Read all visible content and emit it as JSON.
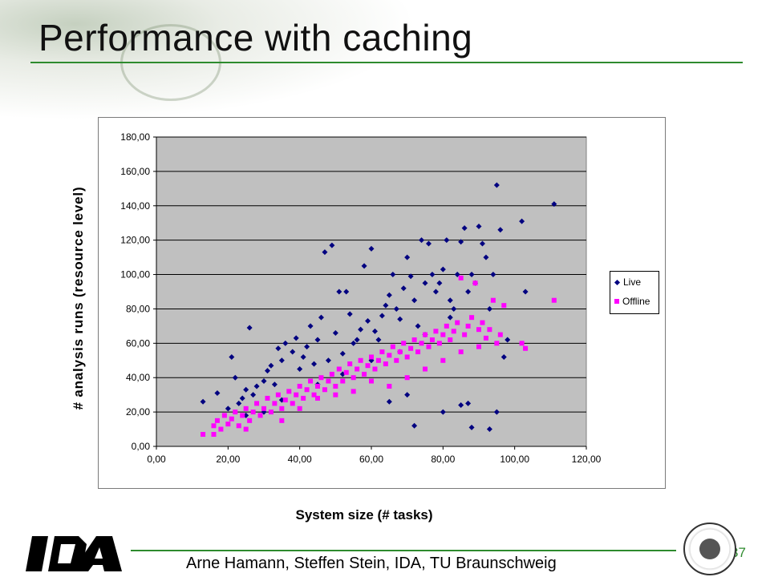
{
  "slide": {
    "title": "Performance with caching",
    "footer": "Arne Hamann, Steffen Stein, IDA, TU Braunschweig",
    "page_number": "37",
    "logo": "IDA",
    "seal_icon": "university-seal-icon"
  },
  "colors": {
    "accent_line": "#2e8b2e",
    "plot_bg": "#c0c0c0",
    "live": "#000080",
    "offline": "#ff00ff"
  },
  "chart_data": {
    "type": "scatter",
    "xlabel": "System size (# tasks)",
    "ylabel": "# analysis runs (resource level)",
    "xlim": [
      0,
      120
    ],
    "ylim": [
      0,
      180
    ],
    "x_ticks": [
      "0,00",
      "20,00",
      "40,00",
      "60,00",
      "80,00",
      "100,00",
      "120,00"
    ],
    "y_ticks": [
      "0,00",
      "20,00",
      "40,00",
      "60,00",
      "80,00",
      "100,00",
      "120,00",
      "140,00",
      "160,00",
      "180,00"
    ],
    "grid": "horizontal",
    "legend_placement": "right",
    "series": [
      {
        "name": "Live",
        "marker": "diamond",
        "points": [
          [
            13,
            26
          ],
          [
            17,
            31
          ],
          [
            20,
            22
          ],
          [
            21,
            52
          ],
          [
            22,
            40
          ],
          [
            24,
            28
          ],
          [
            25,
            33
          ],
          [
            26,
            69
          ],
          [
            27,
            30
          ],
          [
            28,
            35
          ],
          [
            30,
            38
          ],
          [
            31,
            44
          ],
          [
            32,
            47
          ],
          [
            33,
            36
          ],
          [
            34,
            57
          ],
          [
            35,
            50
          ],
          [
            36,
            60
          ],
          [
            38,
            55
          ],
          [
            39,
            63
          ],
          [
            40,
            45
          ],
          [
            41,
            52
          ],
          [
            42,
            58
          ],
          [
            43,
            70
          ],
          [
            44,
            48
          ],
          [
            45,
            62
          ],
          [
            46,
            75
          ],
          [
            47,
            113
          ],
          [
            48,
            50
          ],
          [
            49,
            117
          ],
          [
            50,
            66
          ],
          [
            51,
            90
          ],
          [
            52,
            54
          ],
          [
            53,
            90
          ],
          [
            54,
            77
          ],
          [
            55,
            60
          ],
          [
            56,
            62
          ],
          [
            57,
            68
          ],
          [
            58,
            105
          ],
          [
            59,
            73
          ],
          [
            60,
            115
          ],
          [
            61,
            67
          ],
          [
            62,
            62
          ],
          [
            63,
            76
          ],
          [
            64,
            82
          ],
          [
            65,
            88
          ],
          [
            66,
            100
          ],
          [
            67,
            80
          ],
          [
            68,
            74
          ],
          [
            69,
            92
          ],
          [
            70,
            110
          ],
          [
            71,
            99
          ],
          [
            72,
            85
          ],
          [
            73,
            70
          ],
          [
            74,
            120
          ],
          [
            75,
            95
          ],
          [
            76,
            118
          ],
          [
            77,
            100
          ],
          [
            78,
            90
          ],
          [
            79,
            95
          ],
          [
            80,
            103
          ],
          [
            81,
            120
          ],
          [
            82,
            85
          ],
          [
            83,
            80
          ],
          [
            84,
            100
          ],
          [
            85,
            119
          ],
          [
            86,
            127
          ],
          [
            87,
            90
          ],
          [
            88,
            100
          ],
          [
            89,
            95
          ],
          [
            90,
            128
          ],
          [
            91,
            118
          ],
          [
            92,
            110
          ],
          [
            93,
            80
          ],
          [
            94,
            100
          ],
          [
            95,
            152
          ],
          [
            96,
            126
          ],
          [
            97,
            52
          ],
          [
            98,
            62
          ],
          [
            102,
            131
          ],
          [
            103,
            90
          ],
          [
            111,
            141
          ],
          [
            72,
            12
          ],
          [
            80,
            20
          ],
          [
            85,
            24
          ],
          [
            88,
            11
          ],
          [
            93,
            10
          ],
          [
            95,
            20
          ],
          [
            87,
            25
          ],
          [
            70,
            30
          ],
          [
            65,
            26
          ],
          [
            45,
            36
          ],
          [
            35,
            27
          ],
          [
            30,
            20
          ],
          [
            25,
            18
          ],
          [
            23,
            25
          ],
          [
            52,
            42
          ],
          [
            60,
            50
          ],
          [
            68,
            55
          ],
          [
            75,
            65
          ],
          [
            82,
            75
          ]
        ]
      },
      {
        "name": "Offline",
        "marker": "square",
        "points": [
          [
            13,
            7
          ],
          [
            16,
            7
          ],
          [
            16,
            12
          ],
          [
            17,
            15
          ],
          [
            18,
            10
          ],
          [
            19,
            18
          ],
          [
            20,
            13
          ],
          [
            21,
            16
          ],
          [
            22,
            20
          ],
          [
            23,
            12
          ],
          [
            24,
            18
          ],
          [
            25,
            22
          ],
          [
            26,
            15
          ],
          [
            27,
            20
          ],
          [
            28,
            25
          ],
          [
            29,
            18
          ],
          [
            30,
            22
          ],
          [
            31,
            28
          ],
          [
            32,
            20
          ],
          [
            33,
            25
          ],
          [
            34,
            30
          ],
          [
            35,
            22
          ],
          [
            36,
            27
          ],
          [
            37,
            32
          ],
          [
            38,
            25
          ],
          [
            39,
            30
          ],
          [
            40,
            35
          ],
          [
            41,
            28
          ],
          [
            42,
            33
          ],
          [
            43,
            38
          ],
          [
            44,
            30
          ],
          [
            45,
            35
          ],
          [
            46,
            40
          ],
          [
            47,
            33
          ],
          [
            48,
            38
          ],
          [
            49,
            42
          ],
          [
            50,
            35
          ],
          [
            51,
            45
          ],
          [
            52,
            38
          ],
          [
            53,
            43
          ],
          [
            54,
            48
          ],
          [
            55,
            40
          ],
          [
            56,
            45
          ],
          [
            57,
            50
          ],
          [
            58,
            42
          ],
          [
            59,
            47
          ],
          [
            60,
            52
          ],
          [
            61,
            45
          ],
          [
            62,
            50
          ],
          [
            63,
            55
          ],
          [
            64,
            48
          ],
          [
            65,
            53
          ],
          [
            66,
            58
          ],
          [
            67,
            50
          ],
          [
            68,
            55
          ],
          [
            69,
            60
          ],
          [
            70,
            52
          ],
          [
            71,
            57
          ],
          [
            72,
            62
          ],
          [
            73,
            55
          ],
          [
            74,
            60
          ],
          [
            75,
            65
          ],
          [
            76,
            58
          ],
          [
            77,
            62
          ],
          [
            78,
            67
          ],
          [
            79,
            60
          ],
          [
            80,
            65
          ],
          [
            81,
            70
          ],
          [
            82,
            62
          ],
          [
            83,
            67
          ],
          [
            84,
            72
          ],
          [
            85,
            98
          ],
          [
            86,
            65
          ],
          [
            87,
            70
          ],
          [
            88,
            75
          ],
          [
            89,
            95
          ],
          [
            90,
            68
          ],
          [
            91,
            72
          ],
          [
            92,
            63
          ],
          [
            93,
            68
          ],
          [
            94,
            85
          ],
          [
            95,
            60
          ],
          [
            96,
            65
          ],
          [
            97,
            82
          ],
          [
            102,
            60
          ],
          [
            103,
            57
          ],
          [
            111,
            85
          ],
          [
            35,
            15
          ],
          [
            40,
            22
          ],
          [
            45,
            28
          ],
          [
            50,
            30
          ],
          [
            55,
            32
          ],
          [
            60,
            38
          ],
          [
            65,
            35
          ],
          [
            70,
            40
          ],
          [
            75,
            45
          ],
          [
            80,
            50
          ],
          [
            85,
            55
          ],
          [
            90,
            58
          ],
          [
            25,
            10
          ]
        ]
      }
    ]
  }
}
